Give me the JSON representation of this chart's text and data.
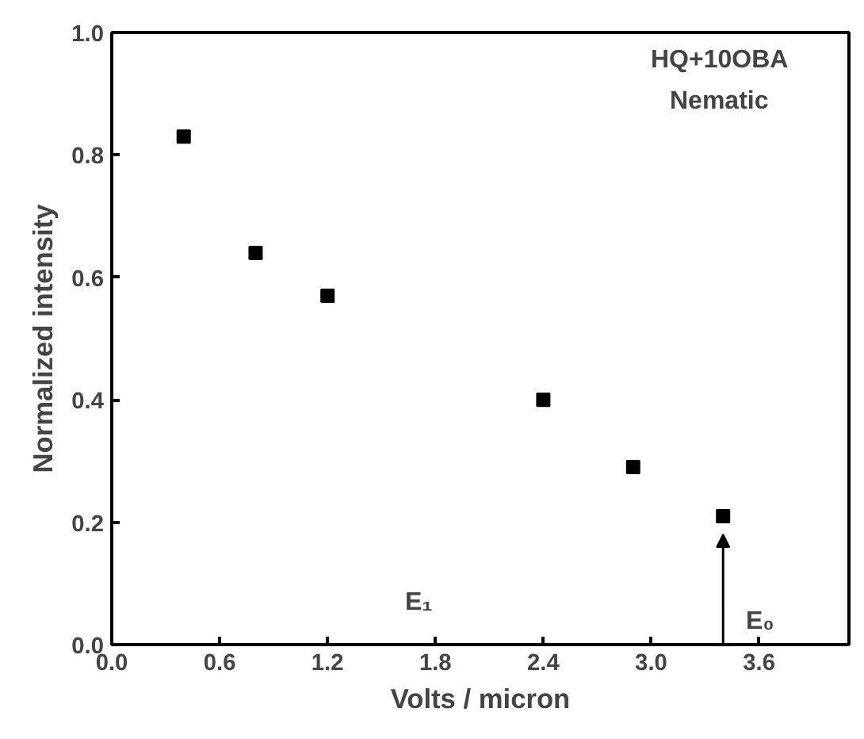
{
  "chart_data": {
    "type": "scatter",
    "xlabel": "Volts / micron",
    "ylabel": "Normalized intensity",
    "x": [
      0.4,
      0.8,
      1.2,
      2.4,
      2.9,
      3.4
    ],
    "series": [
      {
        "color": "#000000",
        "values": [
          0.83,
          0.64,
          0.57,
          0.4,
          0.29,
          0.21
        ]
      }
    ],
    "marker": "square",
    "xlim": [
      0.0,
      4.1
    ],
    "xticks": [
      {
        "value": 0,
        "label": "0.0"
      },
      0.6,
      1.2,
      1.8,
      2.4,
      {
        "value": 3,
        "label": "3.0"
      },
      3.6
    ],
    "ylim": [
      0.0,
      1.0
    ],
    "yticks": [
      {
        "value": 0,
        "label": "0.0"
      },
      0.2,
      0.4,
      0.6,
      0.8,
      {
        "value": 1,
        "label": "1.0"
      }
    ],
    "annotations": [
      "HQ+10OBA",
      "Nematic",
      "E₁",
      "E₀"
    ],
    "grid": false
  }
}
